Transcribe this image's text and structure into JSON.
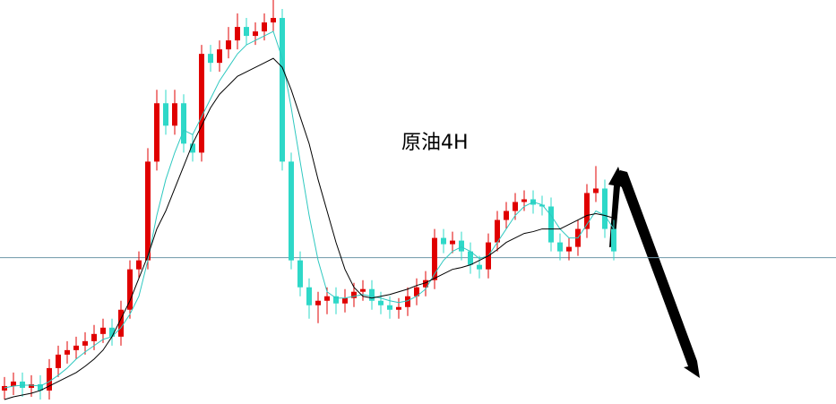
{
  "chart_data": {
    "type": "candlestick",
    "title": "原油4H",
    "categories": [
      null,
      null,
      null,
      null,
      null,
      null,
      null,
      null,
      null,
      null,
      null,
      null,
      null,
      null,
      null,
      null,
      null,
      null,
      null,
      null,
      null,
      null,
      null,
      null,
      null,
      null,
      null,
      null,
      null,
      null,
      null,
      null,
      null,
      null,
      null,
      null,
      null,
      null,
      null,
      null,
      null,
      null,
      null,
      null,
      null,
      null,
      null,
      null,
      null,
      null,
      null,
      null,
      null,
      null,
      null,
      null,
      null,
      null,
      null,
      null,
      null,
      null,
      null,
      null,
      null,
      null,
      null,
      null,
      null
    ],
    "open": [
      15,
      20,
      25,
      18,
      22,
      15,
      40,
      55,
      60,
      65,
      70,
      78,
      85,
      75,
      105,
      150,
      160,
      270,
      335,
      310,
      335,
      290,
      280,
      390,
      380,
      395,
      405,
      420,
      410,
      415,
      425,
      430,
      270,
      160,
      130,
      110,
      115,
      120,
      112,
      118,
      125,
      128,
      115,
      110,
      105,
      108,
      120,
      130,
      138,
      185,
      178,
      182,
      170,
      155,
      150,
      180,
      205,
      215,
      225,
      228,
      222,
      220,
      180,
      170,
      175,
      195,
      235,
      240,
      195
    ],
    "high": [
      30,
      35,
      35,
      32,
      32,
      50,
      65,
      70,
      75,
      80,
      88,
      95,
      95,
      115,
      160,
      170,
      285,
      350,
      350,
      350,
      345,
      300,
      400,
      400,
      405,
      420,
      435,
      430,
      425,
      435,
      450,
      440,
      280,
      170,
      140,
      125,
      130,
      130,
      128,
      135,
      138,
      138,
      125,
      120,
      118,
      130,
      140,
      148,
      195,
      195,
      192,
      192,
      180,
      165,
      190,
      215,
      225,
      235,
      238,
      238,
      232,
      230,
      190,
      185,
      205,
      245,
      265,
      250,
      205
    ],
    "low": [
      5,
      10,
      8,
      8,
      5,
      5,
      30,
      45,
      50,
      55,
      60,
      68,
      65,
      65,
      95,
      140,
      150,
      260,
      300,
      300,
      280,
      270,
      270,
      370,
      370,
      385,
      395,
      400,
      400,
      405,
      415,
      260,
      150,
      120,
      95,
      90,
      100,
      100,
      102,
      108,
      115,
      105,
      100,
      95,
      95,
      98,
      110,
      120,
      128,
      168,
      168,
      160,
      145,
      140,
      140,
      170,
      195,
      205,
      215,
      212,
      210,
      170,
      160,
      160,
      165,
      185,
      225,
      185,
      160
    ],
    "close": [
      20,
      25,
      18,
      22,
      15,
      40,
      55,
      60,
      65,
      70,
      78,
      85,
      75,
      105,
      150,
      160,
      270,
      335,
      310,
      335,
      290,
      280,
      390,
      380,
      395,
      405,
      420,
      410,
      415,
      425,
      430,
      270,
      160,
      130,
      110,
      115,
      120,
      112,
      118,
      125,
      128,
      115,
      110,
      105,
      108,
      120,
      130,
      138,
      185,
      178,
      182,
      170,
      155,
      150,
      180,
      205,
      215,
      225,
      228,
      222,
      220,
      180,
      170,
      175,
      195,
      235,
      240,
      195,
      170
    ],
    "up_color": "#e00000",
    "down_color": "#2ed8c8",
    "lines": [
      {
        "color": "#2ec8c0",
        "values": [
          18,
          20,
          21,
          21,
          20,
          25,
          32,
          40,
          50,
          58,
          65,
          72,
          75,
          85,
          100,
          120,
          160,
          210,
          250,
          280,
          305,
          300,
          320,
          340,
          360,
          375,
          390,
          400,
          405,
          410,
          415,
          385,
          330,
          270,
          210,
          160,
          125,
          118,
          118,
          120,
          122,
          120,
          118,
          115,
          113,
          115,
          120,
          128,
          145,
          160,
          170,
          175,
          170,
          162,
          165,
          180,
          195,
          210,
          220,
          225,
          222,
          210,
          195,
          185,
          185,
          200,
          215,
          210,
          195
        ]
      },
      {
        "color": "#000000",
        "values": [
          5,
          8,
          10,
          12,
          15,
          20,
          25,
          30,
          35,
          42,
          50,
          60,
          75,
          95,
          115,
          140,
          165,
          195,
          215,
          240,
          265,
          290,
          310,
          330,
          345,
          355,
          365,
          370,
          375,
          380,
          385,
          375,
          350,
          320,
          290,
          250,
          215,
          180,
          150,
          130,
          120,
          118,
          120,
          122,
          125,
          128,
          132,
          135,
          140,
          145,
          150,
          152,
          155,
          160,
          165,
          172,
          180,
          185,
          190,
          192,
          195,
          195,
          195,
          200,
          205,
          210,
          212,
          210,
          207
        ]
      }
    ],
    "ylim": [
      0,
      450
    ],
    "reference_line": 163,
    "reference_color": "#6e97a8"
  }
}
